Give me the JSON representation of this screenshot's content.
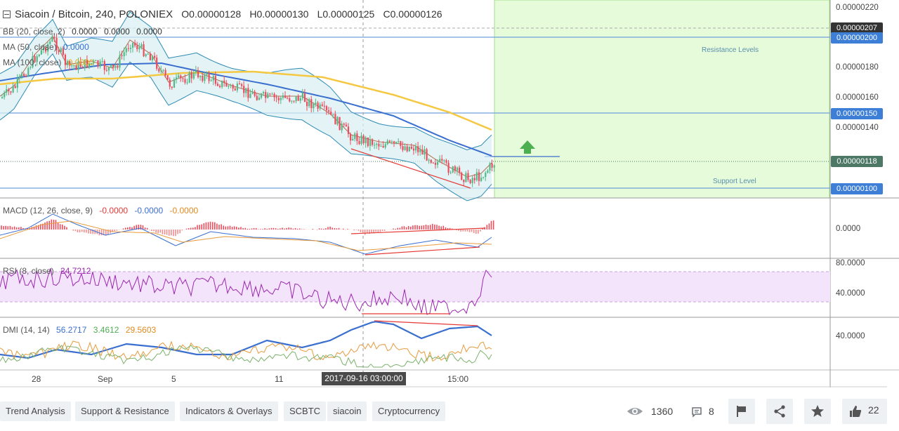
{
  "header": {
    "title": "Siacoin / Bitcoin, 240, POLONIEX",
    "o": "O0.00000128",
    "h": "H0.00000130",
    "l": "L0.00000125",
    "c": "C0.00000126"
  },
  "legends": {
    "bb": {
      "label": "BB (20, close, 2)",
      "v1": "0.0000",
      "v2": "0.0000",
      "v3": "0.0000"
    },
    "ma50": {
      "label": "MA (50, close)",
      "v": "0.0000"
    },
    "ma100": {
      "label": "MA (100, close)",
      "v": "0.0000"
    },
    "macd": {
      "label": "MACD (12, 26, close, 9)",
      "v1": "-0.0000",
      "v2": "-0.0000",
      "v3": "-0.0000"
    },
    "rsi": {
      "label": "RSI (8, close)",
      "v": "24.7212"
    },
    "dmi": {
      "label": "DMI (14, 14)",
      "v1": "56.2717",
      "v2": "3.4612",
      "v3": "29.5603"
    }
  },
  "price_axis": {
    "ticks": [
      "0.00000220",
      "0.00000180",
      "0.00000160",
      "0.00000140"
    ],
    "labels": [
      {
        "text": "0.00000207",
        "color": "#333333"
      },
      {
        "text": "0.00000200",
        "color": "#3d7fd6"
      },
      {
        "text": "0.00000150",
        "color": "#3d7fd6"
      },
      {
        "text": "0.00000118",
        "color": "#4d7866"
      },
      {
        "text": "0.00000100",
        "color": "#3d7fd6"
      }
    ]
  },
  "macd_axis": {
    "tick": "0.0000"
  },
  "rsi_axis": {
    "ticks": [
      "80.0000",
      "40.0000"
    ]
  },
  "dmi_axis": {
    "tick": "40.0000"
  },
  "time_axis": {
    "ticks": [
      "28",
      "Sep",
      "5",
      "11",
      "15:00"
    ],
    "crosshair": "2017-09-16 03:00:00"
  },
  "annotations": {
    "resistance": "Resistance Levels",
    "support": "Support Level"
  },
  "colors": {
    "up": "#53b987",
    "down": "#eb4d5c",
    "ma50": "#3a6fd0",
    "ma100": "#f5c842",
    "bb": "#2e8bb3",
    "rsi": "#9b27b0",
    "zone": "#e5fbd9",
    "level": "#6fa0dc"
  },
  "tags": [
    "Trend Analysis",
    "Support & Resistance",
    "Indicators & Overlays",
    "SCBTC",
    "siacoin",
    "Cryptocurrency"
  ],
  "stats": {
    "views": "1360",
    "comments": "8",
    "likes": "22"
  }
}
